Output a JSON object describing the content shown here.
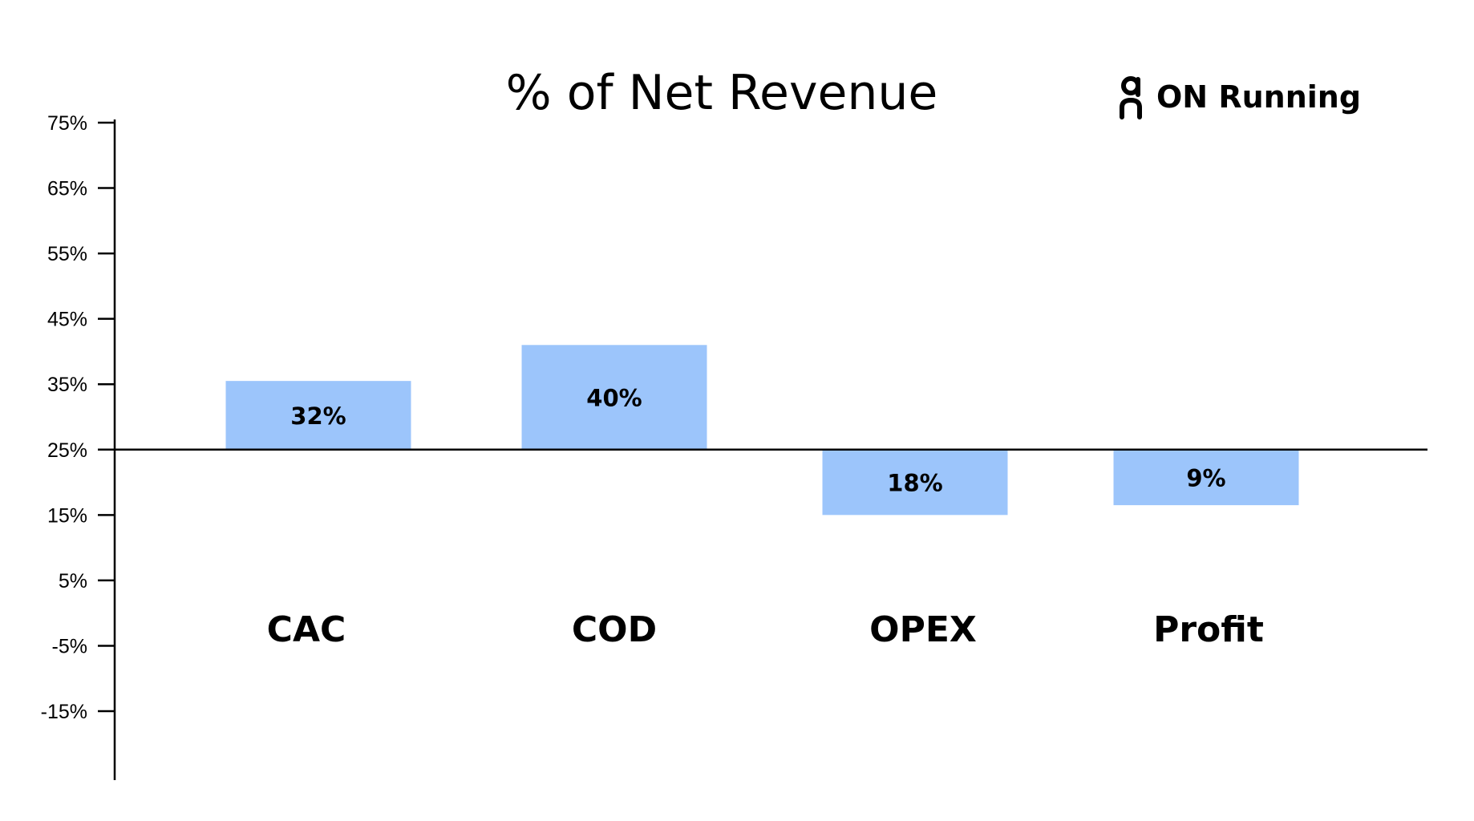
{
  "chart_data": {
    "type": "bar",
    "title": "% of Net Revenue",
    "brand": "ON Running",
    "categories": [
      "CAC",
      "COD",
      "OPEX",
      "Profit"
    ],
    "value_labels": [
      "32%",
      "40%",
      "18%",
      "9%"
    ],
    "bar_range": [
      [
        25,
        35.5
      ],
      [
        25,
        41
      ],
      [
        25,
        15
      ],
      [
        25,
        16.5
      ]
    ],
    "yticks": [
      75,
      65,
      55,
      45,
      35,
      25,
      15,
      5,
      -5,
      -15
    ],
    "ytick_labels": [
      "75%",
      "65%",
      "55%",
      "45%",
      "35%",
      "25%",
      "15%",
      "5%",
      "-5%",
      "-15%"
    ],
    "ylim": [
      -25,
      75
    ],
    "baseline": 25,
    "xlabel": "",
    "ylabel": "",
    "grid": false,
    "bar_color": "#9cc5fb",
    "axis_color": "#000000"
  }
}
